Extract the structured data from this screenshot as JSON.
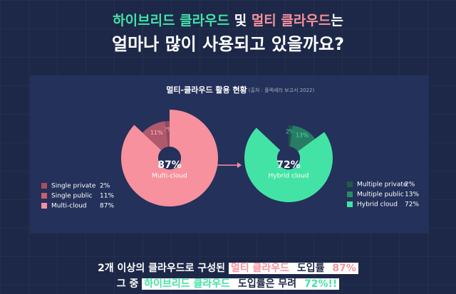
{
  "header": {
    "title": [
      "하이브리드 클라우드",
      " 및 ",
      "멀티 클라우드",
      "는"
    ],
    "subtitle": "얼마나 많이 사용되고 있을까요?"
  },
  "panel": {
    "title": "멀티-클라우드 활용 현황",
    "source": "(출처 : 플렉세라 보고서 2022)"
  },
  "chart_data": [
    {
      "type": "pie",
      "categories": [
        "Single private",
        "Single public",
        "Multi-cloud"
      ],
      "values": [
        2,
        11,
        87
      ],
      "value_labels": [
        "2%",
        "11%",
        "87%"
      ],
      "colors": [
        "#a5505f",
        "#c9606f",
        "#f6919d"
      ]
    },
    {
      "type": "pie",
      "categories": [
        "Multiple private",
        "Multiple public",
        "Hybrid cloud"
      ],
      "values": [
        2,
        13,
        72
      ],
      "value_labels": [
        "2%",
        "13%",
        "72%"
      ],
      "colors": [
        "#1f5b4b",
        "#2a8a66",
        "#43e3a5"
      ]
    }
  ],
  "footer": {
    "line1": [
      "2개 이상의 클라우드로 구성된 ",
      "멀티 클라우드",
      " 도입률 ",
      "87%"
    ],
    "line2": [
      "그 중 ",
      "하이브리드 클라우드",
      " 도입률은 무려 ",
      "72%!!"
    ]
  }
}
